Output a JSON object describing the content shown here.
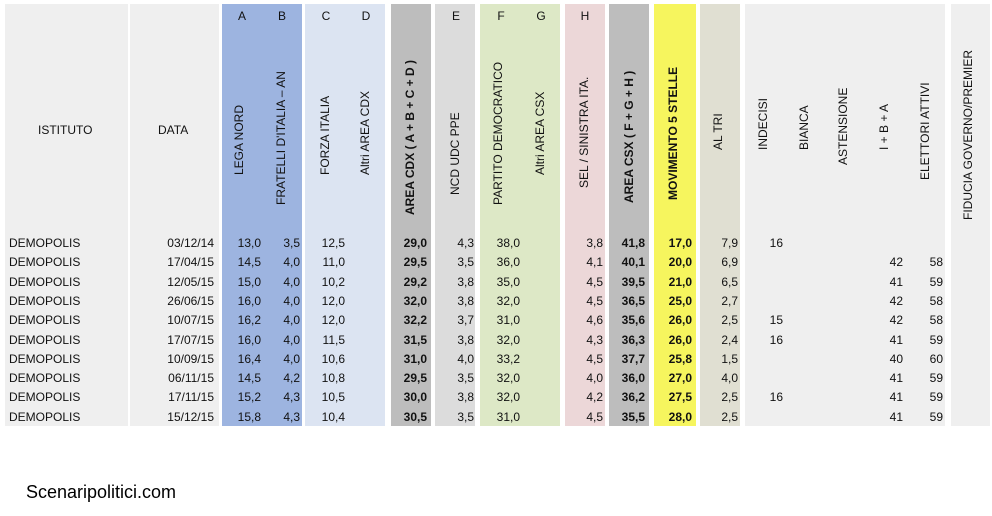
{
  "columns": [
    {
      "id": "lega",
      "letter": "A",
      "header": "LEGA NORD",
      "bold": false
    },
    {
      "id": "fdi",
      "letter": "B",
      "header": "FRATELLI D'ITALIA – AN",
      "bold": false
    },
    {
      "id": "fi",
      "letter": "C",
      "header": "FORZA ITALIA",
      "bold": false
    },
    {
      "id": "altricdx",
      "letter": "D",
      "header": "Altri AREA CDX",
      "bold": false
    },
    {
      "id": "areacdx",
      "letter": "",
      "header": "AREA CDX   ( A + B + C + D )",
      "bold": true
    },
    {
      "id": "ncd",
      "letter": "E",
      "header": "NCD UDC PPE",
      "bold": false
    },
    {
      "id": "pd",
      "letter": "F",
      "header": "PARTITO DEMOCRATICO",
      "bold": false
    },
    {
      "id": "altricsx",
      "letter": "G",
      "header": "Altri AREA CSX",
      "bold": false
    },
    {
      "id": "sel",
      "letter": "H",
      "header": "SEL / SINISTRA ITA.",
      "bold": false
    },
    {
      "id": "areacsx",
      "letter": "",
      "header": "AREA CSX   ( F + G + H )",
      "bold": true
    },
    {
      "id": "m5s",
      "letter": "",
      "header": "MOVIMENTO 5 STELLE",
      "bold": true
    },
    {
      "id": "altri",
      "letter": "",
      "header": "AL TRI",
      "bold": false
    },
    {
      "id": "indecisi",
      "letter": "",
      "header": "INDECISI",
      "bold": false
    },
    {
      "id": "bianca",
      "letter": "",
      "header": "BIANCA",
      "bold": false
    },
    {
      "id": "astensione",
      "letter": "",
      "header": "ASTENSIONE",
      "bold": false
    },
    {
      "id": "iba",
      "letter": "",
      "header": "I + B + A",
      "bold": false
    },
    {
      "id": "elettori",
      "letter": "",
      "header": "ELETTORI ATTIVI",
      "bold": false
    },
    {
      "id": "fiducia",
      "letter": "",
      "header": "FIDUCIA GOVERNO/PREMIER",
      "bold": false
    }
  ],
  "headers": {
    "istituto": "ISTITUTO",
    "data": "DATA"
  },
  "rows": [
    {
      "istituto": "DEMOPOLIS",
      "data": "03/12/14",
      "lega": "13,0",
      "fdi": "3,5",
      "fi": "12,5",
      "altricdx": "",
      "areacdx": "29,0",
      "ncd": "4,3",
      "pd": "38,0",
      "altricsx": "",
      "sel": "3,8",
      "areacsx": "41,8",
      "m5s": "17,0",
      "altri": "7,9",
      "indecisi": "16",
      "bianca": "",
      "astensione": "",
      "iba": "",
      "elettori": "",
      "fiducia": ""
    },
    {
      "istituto": "DEMOPOLIS",
      "data": "17/04/15",
      "lega": "14,5",
      "fdi": "4,0",
      "fi": "11,0",
      "altricdx": "",
      "areacdx": "29,5",
      "ncd": "3,5",
      "pd": "36,0",
      "altricsx": "",
      "sel": "4,1",
      "areacsx": "40,1",
      "m5s": "20,0",
      "altri": "6,9",
      "indecisi": "",
      "bianca": "",
      "astensione": "",
      "iba": "42",
      "elettori": "58",
      "fiducia": ""
    },
    {
      "istituto": "DEMOPOLIS",
      "data": "12/05/15",
      "lega": "15,0",
      "fdi": "4,0",
      "fi": "10,2",
      "altricdx": "",
      "areacdx": "29,2",
      "ncd": "3,8",
      "pd": "35,0",
      "altricsx": "",
      "sel": "4,5",
      "areacsx": "39,5",
      "m5s": "21,0",
      "altri": "6,5",
      "indecisi": "",
      "bianca": "",
      "astensione": "",
      "iba": "41",
      "elettori": "59",
      "fiducia": ""
    },
    {
      "istituto": "DEMOPOLIS",
      "data": "26/06/15",
      "lega": "16,0",
      "fdi": "4,0",
      "fi": "12,0",
      "altricdx": "",
      "areacdx": "32,0",
      "ncd": "3,8",
      "pd": "32,0",
      "altricsx": "",
      "sel": "4,5",
      "areacsx": "36,5",
      "m5s": "25,0",
      "altri": "2,7",
      "indecisi": "",
      "bianca": "",
      "astensione": "",
      "iba": "42",
      "elettori": "58",
      "fiducia": ""
    },
    {
      "istituto": "DEMOPOLIS",
      "data": "10/07/15",
      "lega": "16,2",
      "fdi": "4,0",
      "fi": "12,0",
      "altricdx": "",
      "areacdx": "32,2",
      "ncd": "3,7",
      "pd": "31,0",
      "altricsx": "",
      "sel": "4,6",
      "areacsx": "35,6",
      "m5s": "26,0",
      "altri": "2,5",
      "indecisi": "15",
      "bianca": "",
      "astensione": "",
      "iba": "42",
      "elettori": "58",
      "fiducia": ""
    },
    {
      "istituto": "DEMOPOLIS",
      "data": "17/07/15",
      "lega": "16,0",
      "fdi": "4,0",
      "fi": "11,5",
      "altricdx": "",
      "areacdx": "31,5",
      "ncd": "3,8",
      "pd": "32,0",
      "altricsx": "",
      "sel": "4,3",
      "areacsx": "36,3",
      "m5s": "26,0",
      "altri": "2,4",
      "indecisi": "16",
      "bianca": "",
      "astensione": "",
      "iba": "41",
      "elettori": "59",
      "fiducia": ""
    },
    {
      "istituto": "DEMOPOLIS",
      "data": "10/09/15",
      "lega": "16,4",
      "fdi": "4,0",
      "fi": "10,6",
      "altricdx": "",
      "areacdx": "31,0",
      "ncd": "4,0",
      "pd": "33,2",
      "altricsx": "",
      "sel": "4,5",
      "areacsx": "37,7",
      "m5s": "25,8",
      "altri": "1,5",
      "indecisi": "",
      "bianca": "",
      "astensione": "",
      "iba": "40",
      "elettori": "60",
      "fiducia": ""
    },
    {
      "istituto": "DEMOPOLIS",
      "data": "06/11/15",
      "lega": "14,5",
      "fdi": "4,2",
      "fi": "10,8",
      "altricdx": "",
      "areacdx": "29,5",
      "ncd": "3,5",
      "pd": "32,0",
      "altricsx": "",
      "sel": "4,0",
      "areacsx": "36,0",
      "m5s": "27,0",
      "altri": "4,0",
      "indecisi": "",
      "bianca": "",
      "astensione": "",
      "iba": "41",
      "elettori": "59",
      "fiducia": ""
    },
    {
      "istituto": "DEMOPOLIS",
      "data": "17/11/15",
      "lega": "15,2",
      "fdi": "4,3",
      "fi": "10,5",
      "altricdx": "",
      "areacdx": "30,0",
      "ncd": "3,8",
      "pd": "32,0",
      "altricsx": "",
      "sel": "4,2",
      "areacsx": "36,2",
      "m5s": "27,5",
      "altri": "2,5",
      "indecisi": "16",
      "bianca": "",
      "astensione": "",
      "iba": "41",
      "elettori": "59",
      "fiducia": ""
    },
    {
      "istituto": "DEMOPOLIS",
      "data": "15/12/15",
      "lega": "15,8",
      "fdi": "4,3",
      "fi": "10,4",
      "altricdx": "",
      "areacdx": "30,5",
      "ncd": "3,5",
      "pd": "31,0",
      "altricsx": "",
      "sel": "4,5",
      "areacsx": "35,5",
      "m5s": "28,0",
      "altri": "2,5",
      "indecisi": "",
      "bianca": "",
      "astensione": "",
      "iba": "41",
      "elettori": "59",
      "fiducia": ""
    }
  ],
  "colors": {
    "grey_panel": "#efefef",
    "cdx_parties": "#9db4e0",
    "cdx_others": "#dce4f2",
    "area_cdx": "#bdbdbd",
    "ncd": "#dcdcdc",
    "csx": "#dde8c6",
    "sel": "#ecd7d8",
    "area_csx": "#bdbdbd",
    "m5s": "#f6f55e",
    "altri": "#e0dfd2"
  },
  "footer": {
    "brand": "Scenaripolitici.com"
  }
}
